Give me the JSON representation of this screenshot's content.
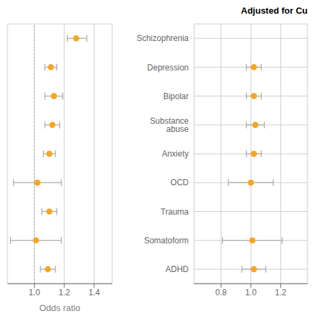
{
  "chart_data": [
    {
      "type": "scatter",
      "orientation": "horizontal",
      "categories": [
        "Schizophrenia",
        "Depression",
        "Bipolar",
        "Substance abuse",
        "Anxiety",
        "OCD",
        "Trauma",
        "Somatoform",
        "ADHD"
      ],
      "xlabel": "Odds ratio",
      "xlim": [
        0.82,
        1.52
      ],
      "xticks": [
        {
          "value": 1.0,
          "label": "1.0"
        },
        1.2,
        1.4
      ],
      "values": [
        1.28,
        1.11,
        1.13,
        1.12,
        1.1,
        1.02,
        1.1,
        1.01,
        1.09
      ],
      "xerr_lo": [
        0.06,
        0.04,
        0.06,
        0.05,
        0.04,
        0.16,
        0.05,
        0.17,
        0.05
      ],
      "xerr_hi": [
        0.07,
        0.04,
        0.06,
        0.05,
        0.04,
        0.16,
        0.05,
        0.17,
        0.05
      ],
      "vline": {
        "x": 1.0,
        "color": "#999999",
        "line_style": "dotted"
      },
      "color": "#F5A623",
      "grid": true,
      "tick_labels": "x"
    },
    {
      "type": "scatter",
      "orientation": "horizontal",
      "title": "Adjusted for Cu",
      "categories": [
        "Schizophrenia",
        "Depression",
        "Bipolar",
        "Substance abuse",
        "Anxiety",
        "OCD",
        "Trauma",
        "Somatoform",
        "ADHD"
      ],
      "xlim": [
        0.62,
        1.38
      ],
      "xticks": [
        0.8,
        {
          "value": 1.0,
          "label": "1.0"
        },
        1.2
      ],
      "values": [
        null,
        1.02,
        1.02,
        1.03,
        1.02,
        1.0,
        null,
        1.01,
        1.02
      ],
      "xerr_lo": [
        null,
        0.05,
        0.05,
        0.06,
        0.05,
        0.15,
        null,
        0.2,
        0.08
      ],
      "xerr_hi": [
        null,
        0.05,
        0.05,
        0.06,
        0.05,
        0.15,
        null,
        0.2,
        0.08
      ],
      "color": "#F5A623",
      "grid": true
    }
  ]
}
